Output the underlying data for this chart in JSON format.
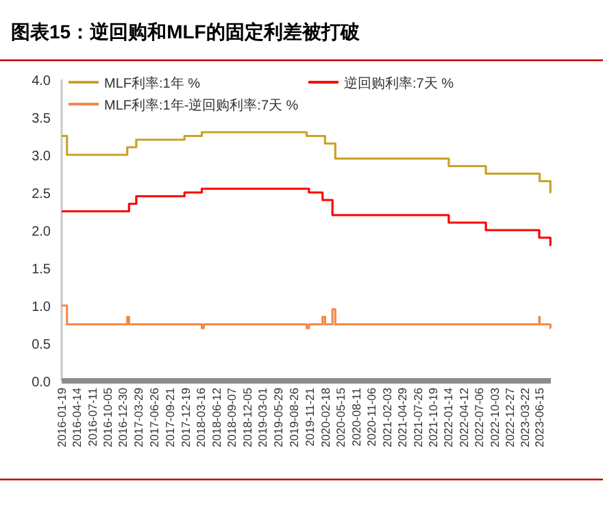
{
  "chart_data": {
    "type": "step",
    "title": "图表15：逆回购和MLF的固定利差被打破",
    "series": [
      {
        "name": "MLF利率:1年 %",
        "color": "#c9a227",
        "x": [
          "2016-01-19",
          "2016-02-18",
          "2017-01-24",
          "2017-03-16",
          "2017-12-14",
          "2018-03-22",
          "2019-11-05",
          "2020-02-17",
          "2020-04-15",
          "2022-01-17",
          "2022-08-15",
          "2023-06-15",
          "2023-08-15",
          "2023-08-18"
        ],
        "values": [
          3.25,
          3.0,
          3.1,
          3.2,
          3.25,
          3.3,
          3.25,
          3.15,
          2.95,
          2.85,
          2.75,
          2.65,
          2.5,
          2.5
        ]
      },
      {
        "name": "逆回购利率:7天 %",
        "color": "#ff0000",
        "x": [
          "2016-01-19",
          "2017-02-03",
          "2017-03-16",
          "2017-12-14",
          "2018-03-22",
          "2019-11-18",
          "2020-02-03",
          "2020-03-30",
          "2022-01-17",
          "2022-08-15",
          "2023-06-13",
          "2023-08-15",
          "2023-08-18"
        ],
        "values": [
          2.25,
          2.35,
          2.45,
          2.5,
          2.55,
          2.5,
          2.4,
          2.2,
          2.1,
          2.0,
          1.9,
          1.8,
          1.8
        ]
      },
      {
        "name": "MLF利率:1年-逆回购利率:7天 %",
        "color": "#f4894b",
        "x": [
          "2016-01-19",
          "2016-02-18",
          "2017-01-24",
          "2017-02-03",
          "2018-03-22",
          "2018-04-02",
          "2019-11-05",
          "2019-11-18",
          "2020-02-03",
          "2020-02-17",
          "2020-03-30",
          "2020-04-15",
          "2023-06-13",
          "2023-06-15",
          "2023-08-15",
          "2023-08-18"
        ],
        "values": [
          1.0,
          0.75,
          0.85,
          0.75,
          0.7,
          0.75,
          0.7,
          0.75,
          0.85,
          0.75,
          0.95,
          0.75,
          0.85,
          0.75,
          0.7,
          0.7
        ]
      }
    ],
    "xlim": [
      "2016-01-19",
      "2023-08-18"
    ],
    "xticks": [
      "2016-01-19",
      "2016-04-14",
      "2016-07-11",
      "2016-10-05",
      "2016-12-30",
      "2017-03-29",
      "2017-06-26",
      "2017-09-21",
      "2017-12-19",
      "2018-03-16",
      "2018-06-12",
      "2018-09-07",
      "2018-12-05",
      "2019-03-01",
      "2019-05-29",
      "2019-08-26",
      "2019-11-21",
      "2020-02-18",
      "2020-05-15",
      "2020-08-11",
      "2020-11-06",
      "2021-02-03",
      "2021-04-29",
      "2021-07-26",
      "2021-10-19",
      "2022-01-14",
      "2022-04-12",
      "2022-07-06",
      "2022-10-03",
      "2022-12-27",
      "2023-03-22",
      "2023-06-15"
    ],
    "ylim": [
      0,
      4
    ],
    "yticks": [
      {
        "value": 0,
        "label": "0.0"
      },
      {
        "value": 0.5,
        "label": "0.5"
      },
      {
        "value": 1,
        "label": "1.0"
      },
      {
        "value": 1.5,
        "label": "1.5"
      },
      {
        "value": 2,
        "label": "2.0"
      },
      {
        "value": 2.5,
        "label": "2.5"
      },
      {
        "value": 3,
        "label": "3.0"
      },
      {
        "value": 3.5,
        "label": "3.5"
      },
      {
        "value": 4,
        "label": "4.0"
      }
    ],
    "legend": "top",
    "grid": false
  }
}
